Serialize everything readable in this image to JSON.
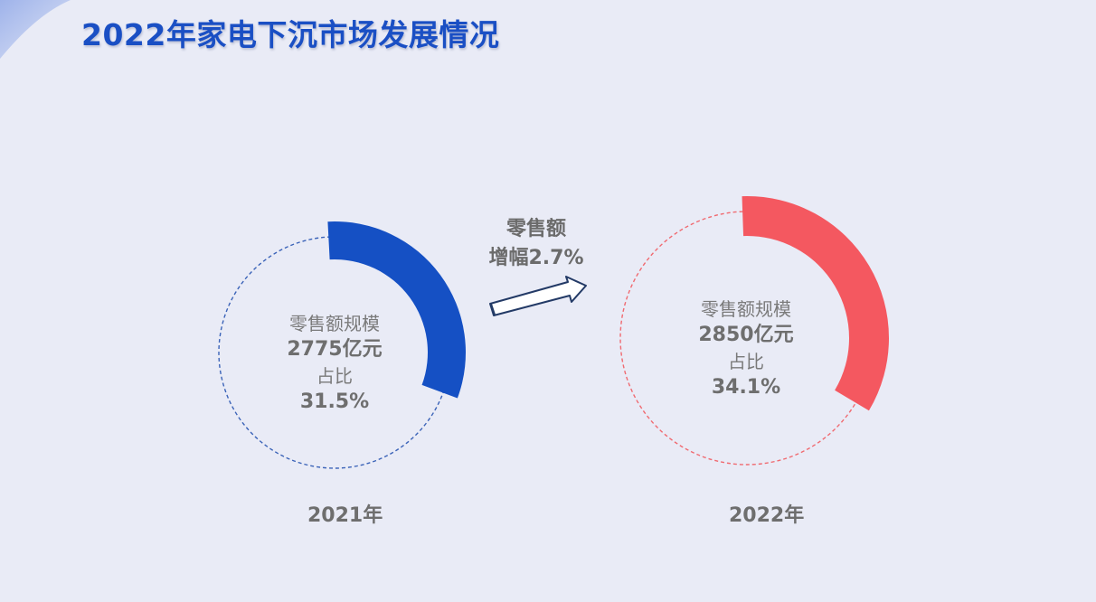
{
  "page": {
    "title": "2022年家电下沉市场发展情况"
  },
  "growth": {
    "label": "零售额",
    "value": "增幅2.7%"
  },
  "colors": {
    "title": "#1a4fc4",
    "series_2021": "#1550c4",
    "series_2022": "#f45860",
    "text_gray": "#6e6e6e",
    "background": "#e9ebf6"
  },
  "chart_data": [
    {
      "type": "pie",
      "year_label": "2021年",
      "center_lines": {
        "metric_label": "零售额规模",
        "metric_value": "2775亿元",
        "share_label": "占比",
        "share_value": "31.5%"
      },
      "categories": [
        "占比",
        "其余"
      ],
      "values": [
        31.5,
        68.5
      ],
      "color": "#1550c4"
    },
    {
      "type": "pie",
      "year_label": "2022年",
      "center_lines": {
        "metric_label": "零售额规模",
        "metric_value": "2850亿元",
        "share_label": "占比",
        "share_value": "34.1%"
      },
      "categories": [
        "占比",
        "其余"
      ],
      "values": [
        34.1,
        65.9
      ],
      "color": "#f45860"
    }
  ]
}
